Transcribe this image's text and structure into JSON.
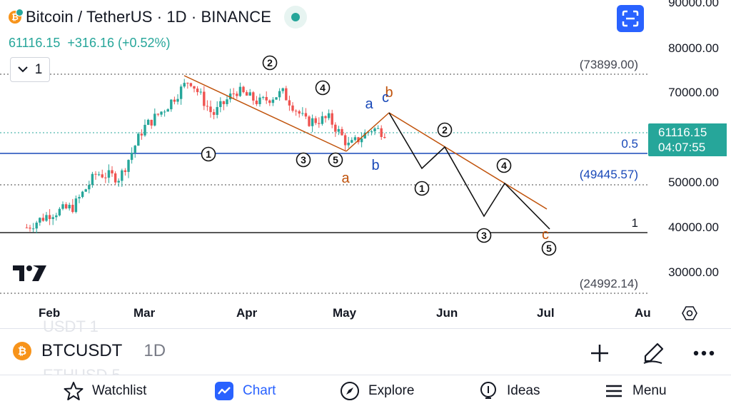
{
  "header": {
    "title": "Bitcoin / TetherUS · 1D · BINANCE",
    "coin_glyph": "₿",
    "price": "61116.15",
    "change": "+316.16 (+0.52%)",
    "interval_button": "1",
    "accent_color": "#26a69a"
  },
  "price_axis": {
    "labels": [
      "90000.00",
      "80000.00",
      "70000.00",
      "50000.00",
      "40000.00",
      "30000.00"
    ],
    "bracket_labels": [
      "(73899.00)",
      "(49445.57)",
      "(24992.14)"
    ],
    "fib_labels": [
      "0.5",
      "1"
    ],
    "current_price": "61116.15",
    "countdown": "04:07:55"
  },
  "time_axis": {
    "labels": [
      "Feb",
      "Mar",
      "Apr",
      "May",
      "Jun",
      "Jul",
      "Au"
    ]
  },
  "wave_labels": {
    "circled": [
      "1",
      "2",
      "3",
      "4",
      "5"
    ],
    "letters": [
      "a",
      "b",
      "c"
    ]
  },
  "chart_data": {
    "type": "candlestick",
    "symbol": "BTCUSDT",
    "interval": "1D",
    "exchange": "BINANCE",
    "y_range": [
      25000,
      90000
    ],
    "x_range": [
      "2024-01-25",
      "2024-08-03"
    ],
    "y_ticks": [
      30000,
      40000,
      50000,
      60000,
      70000,
      80000,
      90000
    ],
    "x_ticks": [
      "Feb",
      "Mar",
      "Apr",
      "May",
      "Jun",
      "Jul",
      "Au"
    ],
    "closes": [
      [
        "2024-01-25",
        39900
      ],
      [
        "2024-02-01",
        43000
      ],
      [
        "2024-02-08",
        44500
      ],
      [
        "2024-02-15",
        52000
      ],
      [
        "2024-02-22",
        51000
      ],
      [
        "2024-02-29",
        62000
      ],
      [
        "2024-03-07",
        66800
      ],
      [
        "2024-03-14",
        73000
      ],
      [
        "2024-03-21",
        65000
      ],
      [
        "2024-03-28",
        70500
      ],
      [
        "2024-04-04",
        67800
      ],
      [
        "2024-04-11",
        70000
      ],
      [
        "2024-04-18",
        63500
      ],
      [
        "2024-04-25",
        64200
      ],
      [
        "2024-05-01",
        58000
      ],
      [
        "2024-05-08",
        62000
      ],
      [
        "2024-05-12",
        61116
      ]
    ],
    "levels": [
      {
        "label": "(73899.00)",
        "value": 73899
      },
      {
        "label": "0.5",
        "value": 56500
      },
      {
        "label": "(49445.57)",
        "value": 49445.57
      },
      {
        "label": "1",
        "value": 39100
      },
      {
        "label": "(24992.14)",
        "value": 24992.14
      }
    ],
    "current_price": 61116.15,
    "projected_path": [
      [
        "2024-05-11",
        65800
      ],
      [
        "2024-05-24",
        53000
      ],
      [
        "2024-06-01",
        56800
      ],
      [
        "2024-06-13",
        42500
      ],
      [
        "2024-06-19",
        50000
      ],
      [
        "2024-07-01",
        39500
      ]
    ],
    "colors": {
      "up": "#26a69a",
      "down": "#ef5350",
      "trendline": "#c0520a",
      "level": "#1848b8"
    }
  },
  "symbol_bar": {
    "symbol": "BTCUSDT",
    "interval": "1D",
    "ghost_above": "USDT 1",
    "ghost_below": "ETHUSD 5"
  },
  "bottom_nav": {
    "items": [
      {
        "label": "Watchlist",
        "icon": "star-icon"
      },
      {
        "label": "Chart",
        "icon": "chart-icon"
      },
      {
        "label": "Explore",
        "icon": "compass-icon"
      },
      {
        "label": "Ideas",
        "icon": "lightbulb-icon"
      },
      {
        "label": "Menu",
        "icon": "menu-icon"
      }
    ],
    "active_color": "#2962ff"
  }
}
